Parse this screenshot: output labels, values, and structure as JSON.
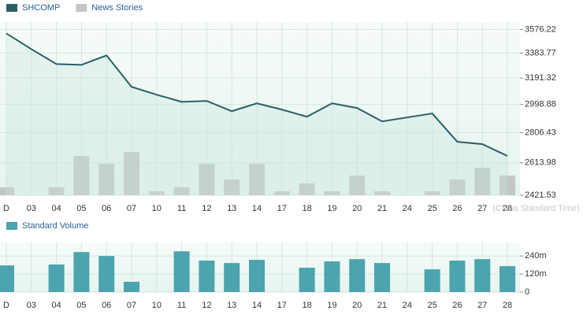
{
  "chart_data": [
    {
      "type": "line",
      "categories": [
        "D",
        "03",
        "04",
        "05",
        "06",
        "07",
        "10",
        "11",
        "12",
        "13",
        "14",
        "17",
        "18",
        "19",
        "20",
        "21",
        "24",
        "25",
        "26",
        "27",
        "28"
      ],
      "series": [
        {
          "name": "SHCOMP",
          "color": "#2a5f66",
          "values": [
            3544,
            3415,
            3297,
            3291,
            3365,
            3125,
            3068,
            3017,
            3023,
            2951,
            3006,
            2962,
            2913,
            3006,
            2973,
            2881,
            2908,
            2935,
            2746,
            2731,
            2656
          ]
        },
        {
          "name": "News Stories",
          "color": "#c3c7c7",
          "type": "bar",
          "values": [
            2,
            0,
            2,
            10,
            8,
            11,
            1,
            2,
            8,
            4,
            8,
            1,
            3,
            1,
            5,
            1,
            0,
            1,
            4,
            7,
            5
          ]
        }
      ],
      "log": true,
      "ylim": [
        2421.53,
        3640
      ],
      "yticks": [
        2421.53,
        2613.98,
        2806.43,
        2998.88,
        3191.32,
        3383.77,
        3576.22
      ],
      "grid": true,
      "annotation": "(China Standard Time)"
    },
    {
      "type": "bar",
      "categories": [
        "D",
        "03",
        "04",
        "05",
        "06",
        "07",
        "10",
        "11",
        "12",
        "13",
        "14",
        "17",
        "18",
        "19",
        "20",
        "21",
        "24",
        "25",
        "26",
        "27",
        "28"
      ],
      "series": [
        {
          "name": "Standard Volume",
          "color": "#4ba4ae",
          "values": [
            177,
            0,
            183,
            266,
            240,
            68,
            0,
            271,
            209,
            193,
            214,
            0,
            162,
            204,
            219,
            193,
            0,
            151,
            209,
            219,
            172
          ]
        }
      ],
      "ylim": [
        0,
        330
      ],
      "yticks": [
        0,
        {
          "value": 120,
          "label": "120m"
        },
        {
          "value": 240,
          "label": "240m"
        }
      ],
      "grid": true
    }
  ]
}
